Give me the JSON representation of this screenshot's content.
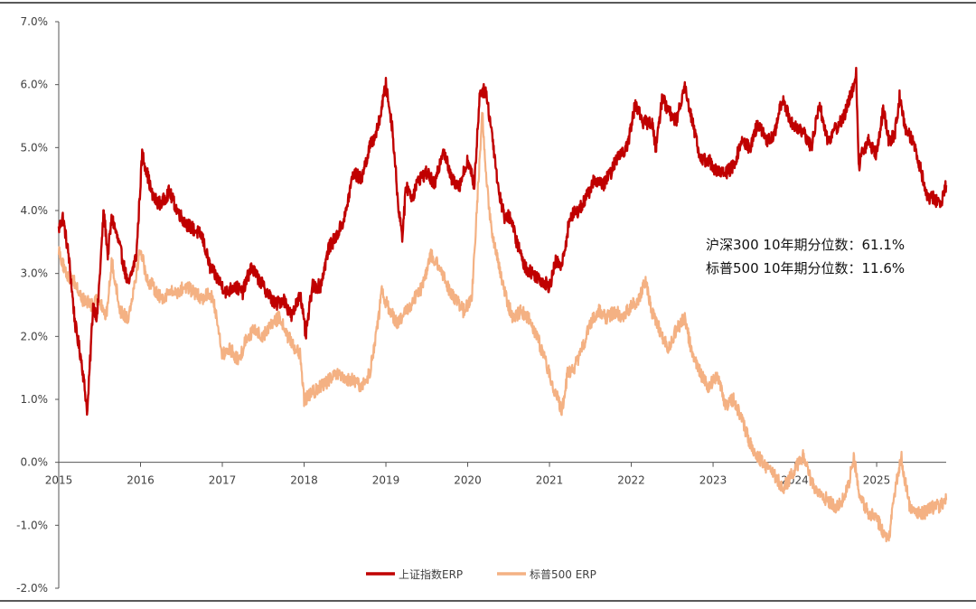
{
  "chart_data": {
    "type": "line",
    "title": "",
    "xlabel": "",
    "ylabel": "",
    "xlim": [
      2015.0,
      2025.85
    ],
    "ylim": [
      -2.0,
      7.0
    ],
    "x_ticks": [
      "2015",
      "2016",
      "2017",
      "2018",
      "2019",
      "2020",
      "2021",
      "2022",
      "2023",
      "2024",
      "2025"
    ],
    "y_ticks": [
      "7.0%",
      "6.0%",
      "5.0%",
      "4.0%",
      "3.0%",
      "2.0%",
      "1.0%",
      "0.0%",
      "-1.0%",
      "-2.0%"
    ],
    "annotations": [
      "沪深300 10年期分位数：61.1%",
      "标普500  10年期分位数：11.6%"
    ],
    "legend_position": "bottom",
    "series": [
      {
        "name": "上证指数ERP",
        "color": "#c00000",
        "x": [
          2015.0,
          2015.05,
          2015.12,
          2015.2,
          2015.28,
          2015.35,
          2015.42,
          2015.47,
          2015.55,
          2015.6,
          2015.65,
          2015.75,
          2015.85,
          2015.95,
          2016.02,
          2016.08,
          2016.15,
          2016.25,
          2016.35,
          2016.45,
          2016.55,
          2016.65,
          2016.75,
          2016.85,
          2016.95,
          2017.05,
          2017.15,
          2017.25,
          2017.35,
          2017.45,
          2017.55,
          2017.65,
          2017.75,
          2017.85,
          2017.95,
          2018.02,
          2018.1,
          2018.2,
          2018.3,
          2018.4,
          2018.5,
          2018.6,
          2018.7,
          2018.8,
          2018.9,
          2019.0,
          2019.08,
          2019.15,
          2019.2,
          2019.25,
          2019.32,
          2019.4,
          2019.5,
          2019.6,
          2019.7,
          2019.8,
          2019.9,
          2020.0,
          2020.08,
          2020.15,
          2020.22,
          2020.3,
          2020.38,
          2020.45,
          2020.52,
          2020.6,
          2020.7,
          2020.8,
          2020.9,
          2021.0,
          2021.08,
          2021.15,
          2021.25,
          2021.35,
          2021.45,
          2021.55,
          2021.65,
          2021.75,
          2021.85,
          2021.95,
          2022.05,
          2022.15,
          2022.25,
          2022.3,
          2022.38,
          2022.45,
          2022.55,
          2022.65,
          2022.75,
          2022.85,
          2022.95,
          2023.05,
          2023.15,
          2023.25,
          2023.35,
          2023.45,
          2023.55,
          2023.65,
          2023.75,
          2023.85,
          2023.95,
          2024.05,
          2024.12,
          2024.2,
          2024.3,
          2024.4,
          2024.5,
          2024.6,
          2024.7,
          2024.75,
          2024.78,
          2024.82,
          2024.9,
          2025.0,
          2025.08,
          2025.15,
          2025.22,
          2025.28,
          2025.35,
          2025.45,
          2025.55,
          2025.62,
          2025.7,
          2025.78,
          2025.85
        ],
        "values": [
          3.7,
          3.9,
          3.3,
          2.2,
          1.6,
          0.8,
          2.5,
          2.3,
          4.0,
          3.3,
          3.9,
          3.4,
          2.8,
          3.3,
          4.9,
          4.6,
          4.2,
          4.1,
          4.3,
          4.0,
          3.8,
          3.7,
          3.6,
          3.1,
          2.9,
          2.7,
          2.8,
          2.7,
          3.1,
          2.9,
          2.7,
          2.5,
          2.6,
          2.3,
          2.7,
          2.0,
          2.8,
          2.8,
          3.4,
          3.6,
          3.9,
          4.6,
          4.5,
          5.0,
          5.3,
          6.0,
          5.3,
          4.1,
          3.6,
          4.4,
          4.2,
          4.5,
          4.6,
          4.4,
          5.0,
          4.5,
          4.4,
          4.8,
          4.4,
          5.9,
          5.9,
          5.2,
          4.3,
          3.9,
          3.9,
          3.5,
          3.1,
          3.0,
          2.9,
          2.8,
          3.2,
          3.1,
          3.9,
          4.0,
          4.2,
          4.5,
          4.4,
          4.6,
          4.9,
          5.0,
          5.7,
          5.4,
          5.4,
          5.0,
          5.8,
          5.6,
          5.4,
          6.0,
          5.4,
          4.8,
          4.8,
          4.6,
          4.6,
          4.7,
          5.1,
          5.0,
          5.4,
          5.1,
          5.2,
          5.8,
          5.4,
          5.3,
          5.2,
          5.0,
          5.7,
          5.1,
          5.3,
          5.5,
          5.9,
          6.2,
          4.7,
          4.9,
          5.1,
          4.9,
          5.6,
          5.1,
          5.2,
          5.8,
          5.3,
          5.1,
          4.6,
          4.2,
          4.2,
          4.1,
          4.4
        ]
      },
      {
        "name": "标普500 ERP",
        "color": "#f4b183",
        "x": [
          2015.0,
          2015.08,
          2015.18,
          2015.28,
          2015.4,
          2015.5,
          2015.58,
          2015.65,
          2015.75,
          2015.85,
          2015.92,
          2016.0,
          2016.08,
          2016.15,
          2016.25,
          2016.35,
          2016.45,
          2016.55,
          2016.65,
          2016.75,
          2016.85,
          2016.92,
          2017.0,
          2017.1,
          2017.2,
          2017.3,
          2017.4,
          2017.5,
          2017.6,
          2017.7,
          2017.8,
          2017.9,
          2017.95,
          2018.0,
          2018.1,
          2018.2,
          2018.3,
          2018.4,
          2018.5,
          2018.6,
          2018.7,
          2018.8,
          2018.9,
          2018.95,
          2019.05,
          2019.15,
          2019.25,
          2019.35,
          2019.45,
          2019.55,
          2019.65,
          2019.75,
          2019.85,
          2019.95,
          2020.05,
          2020.12,
          2020.18,
          2020.22,
          2020.28,
          2020.35,
          2020.45,
          2020.55,
          2020.65,
          2020.75,
          2020.85,
          2020.95,
          2021.05,
          2021.15,
          2021.22,
          2021.3,
          2021.4,
          2021.5,
          2021.6,
          2021.7,
          2021.8,
          2021.9,
          2022.0,
          2022.1,
          2022.18,
          2022.25,
          2022.35,
          2022.45,
          2022.55,
          2022.65,
          2022.75,
          2022.85,
          2022.95,
          2023.05,
          2023.15,
          2023.25,
          2023.35,
          2023.45,
          2023.55,
          2023.65,
          2023.75,
          2023.85,
          2023.92,
          2024.0,
          2024.1,
          2024.2,
          2024.3,
          2024.4,
          2024.5,
          2024.58,
          2024.65,
          2024.72,
          2024.8,
          2024.9,
          2025.0,
          2025.08,
          2025.15,
          2025.22,
          2025.3,
          2025.4,
          2025.5,
          2025.6,
          2025.7,
          2025.78,
          2025.85
        ],
        "values": [
          3.4,
          3.0,
          2.9,
          2.6,
          2.5,
          2.6,
          2.3,
          3.2,
          2.4,
          2.3,
          2.8,
          3.4,
          2.9,
          2.8,
          2.6,
          2.7,
          2.7,
          2.8,
          2.7,
          2.6,
          2.7,
          2.4,
          1.7,
          1.8,
          1.6,
          2.0,
          2.1,
          2.0,
          2.2,
          2.3,
          2.0,
          1.8,
          1.7,
          1.0,
          1.1,
          1.2,
          1.3,
          1.4,
          1.3,
          1.3,
          1.2,
          1.4,
          2.2,
          2.7,
          2.4,
          2.2,
          2.4,
          2.6,
          2.8,
          3.3,
          3.1,
          2.8,
          2.6,
          2.4,
          2.6,
          4.2,
          5.6,
          4.6,
          3.8,
          3.3,
          2.7,
          2.3,
          2.4,
          2.3,
          2.0,
          1.6,
          1.2,
          0.8,
          1.4,
          1.5,
          1.8,
          2.2,
          2.4,
          2.3,
          2.4,
          2.3,
          2.5,
          2.6,
          2.9,
          2.4,
          2.1,
          1.8,
          2.1,
          2.3,
          1.7,
          1.4,
          1.2,
          1.4,
          0.9,
          1.0,
          0.7,
          0.3,
          0.1,
          -0.1,
          -0.2,
          -0.4,
          -0.3,
          -0.1,
          0.1,
          -0.3,
          -0.5,
          -0.6,
          -0.7,
          -0.6,
          -0.4,
          0.1,
          -0.6,
          -0.8,
          -0.9,
          -1.1,
          -1.2,
          -0.5,
          0.1,
          -0.7,
          -0.8,
          -0.8,
          -0.7,
          -0.7,
          -0.6
        ]
      }
    ]
  }
}
